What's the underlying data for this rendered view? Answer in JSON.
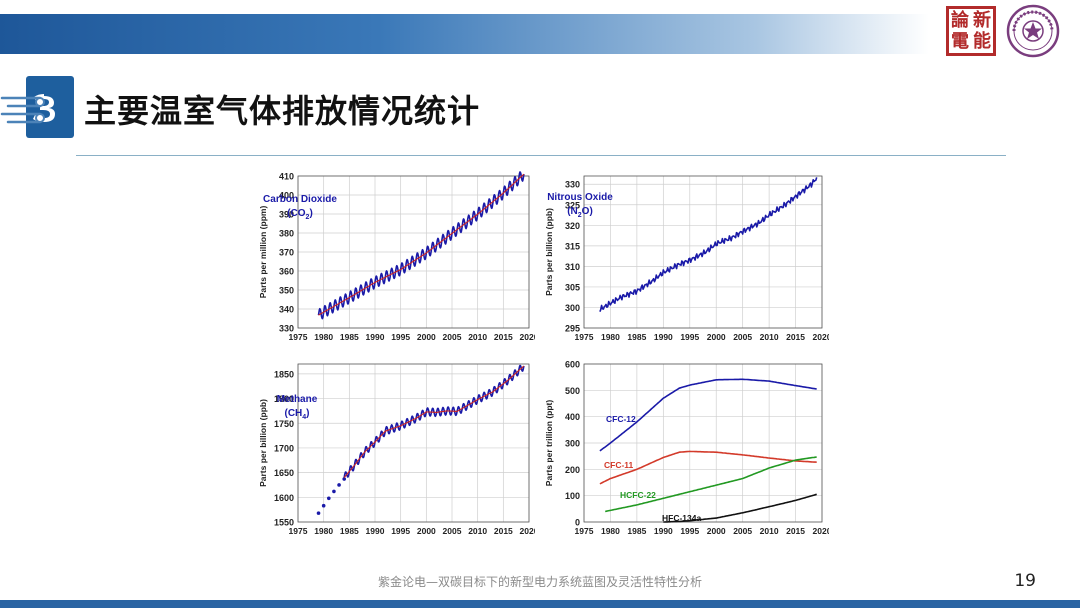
{
  "slide": {
    "title": "主要温室气体排放情况统计",
    "footer": "紫金论电—双碳目标下的新型电力系统蓝图及灵活性特性分析",
    "page_number": "19",
    "seal_chars": [
      "論",
      "新",
      "電",
      "能"
    ]
  },
  "colors": {
    "band": "#1e5799",
    "series_blue": "#1a1aa8",
    "fit_red": "#cc2222",
    "cfc11": "#d33a2a",
    "hcfc22": "#229922",
    "hfc134a": "#111111"
  },
  "chart_data": [
    {
      "type": "line",
      "title": "Carbon Dioxide",
      "title_sub": "(CO",
      "title_subscript": "2",
      "title_close": ")",
      "ylabel": "Parts per million (ppm)",
      "xlim": [
        1975,
        2020
      ],
      "ylim": [
        330,
        410
      ],
      "xticks": [
        1975,
        1980,
        1985,
        1990,
        1995,
        2000,
        2005,
        2010,
        2015,
        2020
      ],
      "yticks": [
        330,
        340,
        350,
        360,
        370,
        380,
        390,
        400,
        410
      ],
      "grid": true,
      "seasonal_amplitude": 3,
      "series": [
        {
          "style": "seasonal",
          "color": "#1a1aa8",
          "x": [
            1979,
            1985,
            1990,
            1995,
            2000,
            2005,
            2010,
            2015,
            2019
          ],
          "y": [
            336.8,
            346,
            354,
            360.8,
            369.5,
            379.8,
            389.9,
            401,
            411
          ]
        },
        {
          "style": "fit",
          "color": "#cc2222",
          "x": [
            1979,
            1985,
            1990,
            1995,
            2000,
            2005,
            2010,
            2015,
            2019
          ],
          "y": [
            336.8,
            346,
            354,
            360.8,
            369.5,
            379.8,
            389.9,
            401,
            411
          ]
        }
      ]
    },
    {
      "type": "line",
      "title": "Nitrous Oxide",
      "title_sub": "(N",
      "title_subscript": "2",
      "title_close": "O)",
      "ylabel": "Parts per billion (ppb)",
      "xlim": [
        1975,
        2020
      ],
      "ylim": [
        295,
        332
      ],
      "xticks": [
        1975,
        1980,
        1985,
        1990,
        1995,
        2000,
        2005,
        2010,
        2015,
        2020
      ],
      "yticks": [
        295,
        300,
        305,
        310,
        315,
        320,
        325,
        330
      ],
      "grid": true,
      "series": [
        {
          "style": "noisy",
          "color": "#1a1aa8",
          "x": [
            1978,
            1980,
            1982,
            1985,
            1988,
            1990,
            1993,
            1995,
            1998,
            2000,
            2003,
            2005,
            2008,
            2010,
            2013,
            2015,
            2018,
            2019
          ],
          "y": [
            299.5,
            301,
            302.5,
            304,
            306.5,
            308.5,
            310.5,
            311.5,
            313.5,
            315.5,
            317,
            318.5,
            320.5,
            322.5,
            325,
            327,
            330,
            331.5
          ]
        }
      ]
    },
    {
      "type": "line",
      "title": "Methane",
      "title_sub": "(CH",
      "title_subscript": "4",
      "title_close": ")",
      "ylabel": "Parts per billion (ppb)",
      "xlim": [
        1975,
        2020
      ],
      "ylim": [
        1550,
        1870
      ],
      "xticks": [
        1975,
        1980,
        1985,
        1990,
        1995,
        2000,
        2005,
        2010,
        2015,
        2020
      ],
      "yticks": [
        1550,
        1600,
        1650,
        1700,
        1750,
        1800,
        1850
      ],
      "grid": true,
      "seasonal_amplitude": 8,
      "series": [
        {
          "style": "points",
          "color": "#1a1aa8",
          "x": [
            1979,
            1980,
            1981,
            1982,
            1983,
            1984
          ],
          "y": [
            1568,
            1583,
            1598,
            1612,
            1625,
            1637
          ]
        },
        {
          "style": "seasonal",
          "color": "#1a1aa8",
          "x": [
            1984,
            1986,
            1988,
            1990,
            1992,
            1995,
            1998,
            2000,
            2002,
            2004,
            2006,
            2007,
            2010,
            2013,
            2016,
            2019
          ],
          "y": [
            1640,
            1665,
            1692,
            1712,
            1734,
            1745,
            1760,
            1773,
            1772,
            1775,
            1774,
            1780,
            1798,
            1814,
            1838,
            1866
          ]
        },
        {
          "style": "fit",
          "color": "#cc2222",
          "x": [
            1984,
            1986,
            1988,
            1990,
            1992,
            1995,
            1998,
            2000,
            2002,
            2004,
            2006,
            2007,
            2010,
            2013,
            2016,
            2019
          ],
          "y": [
            1640,
            1665,
            1692,
            1712,
            1734,
            1745,
            1760,
            1773,
            1772,
            1775,
            1774,
            1780,
            1798,
            1814,
            1838,
            1866
          ]
        }
      ]
    },
    {
      "type": "line",
      "title": "",
      "ylabel": "Parts per trillion (ppt)",
      "xlim": [
        1975,
        2020
      ],
      "ylim": [
        0,
        600
      ],
      "xticks": [
        1975,
        1980,
        1985,
        1990,
        1995,
        2000,
        2005,
        2010,
        2015,
        2020
      ],
      "yticks": [
        0,
        100,
        200,
        300,
        400,
        500,
        600
      ],
      "grid": true,
      "series": [
        {
          "name": "CFC-12",
          "color": "#1a1aa8",
          "style": "smooth",
          "x": [
            1978,
            1980,
            1985,
            1990,
            1993,
            1995,
            2000,
            2005,
            2010,
            2015,
            2019
          ],
          "y": [
            270,
            300,
            380,
            470,
            508,
            520,
            540,
            542,
            535,
            518,
            505
          ]
        },
        {
          "name": "CFC-11",
          "color": "#d33a2a",
          "style": "smooth",
          "x": [
            1978,
            1980,
            1985,
            1990,
            1993,
            1995,
            2000,
            2005,
            2010,
            2015,
            2019
          ],
          "y": [
            145,
            165,
            200,
            245,
            265,
            268,
            265,
            255,
            243,
            232,
            227
          ]
        },
        {
          "name": "HCFC-22",
          "color": "#229922",
          "style": "smooth",
          "x": [
            1979,
            1985,
            1990,
            1995,
            2000,
            2005,
            2010,
            2015,
            2019
          ],
          "y": [
            40,
            65,
            90,
            115,
            140,
            165,
            205,
            235,
            247
          ]
        },
        {
          "name": "HFC-134a",
          "color": "#111111",
          "style": "smooth",
          "x": [
            1990,
            1993,
            1995,
            2000,
            2005,
            2010,
            2015,
            2019
          ],
          "y": [
            0,
            2,
            5,
            15,
            35,
            58,
            82,
            105
          ]
        }
      ]
    }
  ]
}
